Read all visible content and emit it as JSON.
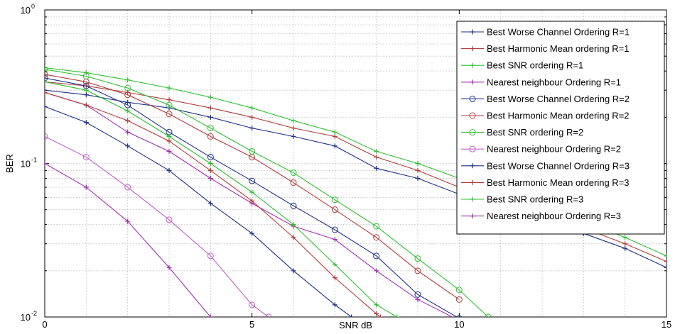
{
  "chart_data": {
    "type": "line",
    "xlabel": "SNR dB",
    "ylabel": "BER",
    "xlim": [
      0,
      15
    ],
    "ylim": [
      0.01,
      1
    ],
    "yscale": "log",
    "grid": true,
    "legend_position": "top-right",
    "x_ticks": [
      {
        "value": 0,
        "label": "0"
      },
      {
        "value": 5,
        "label": "5"
      },
      {
        "value": 10,
        "label": "10"
      },
      {
        "value": 15,
        "label": "15"
      }
    ],
    "y_ticks": [
      {
        "value": 1,
        "label": "10",
        "exp": "0"
      },
      {
        "value": 0.1,
        "label": "10",
        "exp": "-1"
      },
      {
        "value": 0.01,
        "label": "10",
        "exp": "-2"
      }
    ],
    "series": [
      {
        "name": "Best Worse Channel Ordering R=1",
        "color": "#1f2f8a",
        "marker": "plus",
        "x": [
          0,
          1,
          2,
          3,
          4,
          5,
          6,
          7,
          8,
          9,
          10,
          11,
          12,
          13,
          14,
          15
        ],
        "y": [
          0.3,
          0.28,
          0.25,
          0.23,
          0.2,
          0.17,
          0.15,
          0.13,
          0.093,
          0.08,
          0.063,
          0.052,
          0.042,
          0.035,
          0.028,
          0.021
        ]
      },
      {
        "name": "Best Harmonic Mean ordering R=1",
        "color": "#b23b3b",
        "marker": "plus",
        "x": [
          0,
          1,
          2,
          3,
          4,
          5,
          6,
          7,
          8,
          9,
          10,
          11,
          12,
          13,
          14,
          15
        ],
        "y": [
          0.34,
          0.32,
          0.29,
          0.26,
          0.23,
          0.2,
          0.17,
          0.15,
          0.11,
          0.09,
          0.07,
          0.058,
          0.046,
          0.038,
          0.03,
          0.023
        ]
      },
      {
        "name": "Best SNR ordering R=1",
        "color": "#2fbf2f",
        "marker": "plus",
        "x": [
          0,
          1,
          2,
          3,
          4,
          5,
          6,
          7,
          8,
          9,
          10,
          11,
          12,
          13,
          14,
          15
        ],
        "y": [
          0.42,
          0.39,
          0.35,
          0.31,
          0.27,
          0.23,
          0.19,
          0.16,
          0.12,
          0.1,
          0.08,
          0.065,
          0.052,
          0.042,
          0.033,
          0.025
        ]
      },
      {
        "name": "Nearest neighbour Ordering R=1",
        "color": "#a02fb0",
        "marker": "plus",
        "x": [
          0,
          1,
          2,
          3,
          4,
          5,
          6,
          7,
          8,
          9,
          10
        ],
        "y": [
          0.29,
          0.24,
          0.16,
          0.12,
          0.08,
          0.055,
          0.039,
          0.032,
          0.02,
          0.013,
          0.0095
        ]
      },
      {
        "name": "Best Worse Channel Ordering R=2",
        "color": "#1f2f8a",
        "marker": "circle",
        "x": [
          0,
          1,
          2,
          3,
          4,
          5,
          6,
          7,
          8,
          9,
          10
        ],
        "y": [
          0.36,
          0.32,
          0.24,
          0.16,
          0.11,
          0.077,
          0.053,
          0.037,
          0.025,
          0.014,
          0.0098
        ]
      },
      {
        "name": "Best Harmonic Mean ordering R=2",
        "color": "#b23b3b",
        "marker": "circle",
        "x": [
          0,
          1,
          2,
          3,
          4,
          5,
          6,
          7,
          8,
          9,
          10
        ],
        "y": [
          0.38,
          0.34,
          0.28,
          0.21,
          0.15,
          0.11,
          0.075,
          0.05,
          0.033,
          0.02,
          0.013
        ]
      },
      {
        "name": "Best SNR ordering R=2",
        "color": "#2fbf2f",
        "marker": "circle",
        "x": [
          0,
          1,
          2,
          3,
          4,
          5,
          6,
          7,
          8,
          9,
          10,
          10.7
        ],
        "y": [
          0.41,
          0.37,
          0.31,
          0.24,
          0.17,
          0.12,
          0.087,
          0.058,
          0.039,
          0.024,
          0.015,
          0.01
        ]
      },
      {
        "name": "Nearest neighbour Ordering R=2",
        "color": "#c060c8",
        "marker": "circle",
        "x": [
          0,
          1,
          2,
          3,
          4,
          5,
          5.4
        ],
        "y": [
          0.15,
          0.11,
          0.07,
          0.043,
          0.025,
          0.012,
          0.01
        ]
      },
      {
        "name": "Best Worse Channel Ordering R=3",
        "color": "#1f2f8a",
        "marker": "plus",
        "x": [
          0,
          1,
          2,
          3,
          4,
          5,
          6,
          7,
          7.4
        ],
        "y": [
          0.235,
          0.185,
          0.13,
          0.09,
          0.055,
          0.035,
          0.02,
          0.012,
          0.01
        ]
      },
      {
        "name": "Best Harmonic Mean ordering R=3",
        "color": "#b23b3b",
        "marker": "plus",
        "x": [
          0,
          1,
          2,
          3,
          4,
          5,
          6,
          7,
          8,
          8.1
        ],
        "y": [
          0.29,
          0.24,
          0.19,
          0.14,
          0.09,
          0.057,
          0.033,
          0.018,
          0.0105,
          0.01
        ]
      },
      {
        "name": "Best SNR ordering R=3",
        "color": "#2fbf2f",
        "marker": "plus",
        "x": [
          0,
          1,
          2,
          3,
          4,
          5,
          6,
          7,
          8,
          8.5
        ],
        "y": [
          0.34,
          0.3,
          0.22,
          0.15,
          0.1,
          0.065,
          0.04,
          0.022,
          0.012,
          0.01
        ]
      },
      {
        "name": "Nearest neighbour Ordering R=3",
        "color": "#a02fb0",
        "marker": "plus",
        "x": [
          0,
          1,
          2,
          3,
          4
        ],
        "y": [
          0.1,
          0.07,
          0.042,
          0.021,
          0.01
        ]
      }
    ]
  }
}
